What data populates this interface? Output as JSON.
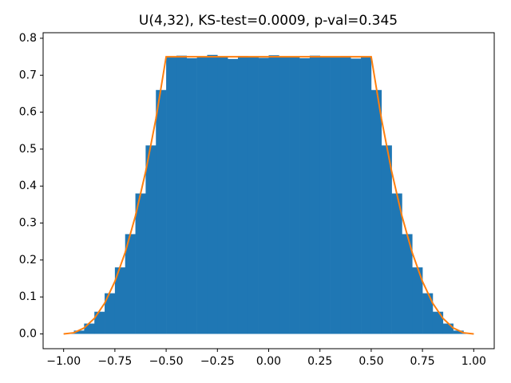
{
  "chart_data": {
    "type": "histogram",
    "title": "U(4,32), KS-test=0.0009, p-val=0.345",
    "bins": [
      -1.0,
      -0.95,
      -0.9,
      -0.85,
      -0.8,
      -0.75,
      -0.7,
      -0.65,
      -0.6,
      -0.55,
      -0.5,
      -0.45,
      -0.4,
      -0.35,
      -0.3,
      -0.25,
      -0.2,
      -0.15,
      -0.1,
      -0.05,
      0.0,
      0.05,
      0.1,
      0.15,
      0.2,
      0.25,
      0.3,
      0.35,
      0.4,
      0.45,
      0.5,
      0.55,
      0.6,
      0.65,
      0.7,
      0.75,
      0.8,
      0.85,
      0.9,
      0.95,
      1.0
    ],
    "values": [
      0.001,
      0.009,
      0.028,
      0.06,
      0.11,
      0.18,
      0.27,
      0.38,
      0.51,
      0.66,
      0.748,
      0.753,
      0.746,
      0.751,
      0.755,
      0.749,
      0.744,
      0.752,
      0.75,
      0.747,
      0.754,
      0.749,
      0.751,
      0.746,
      0.753,
      0.75,
      0.748,
      0.752,
      0.745,
      0.751,
      0.66,
      0.51,
      0.38,
      0.27,
      0.18,
      0.11,
      0.06,
      0.028,
      0.009,
      0.001
    ],
    "color": "#1f77b4",
    "line": {
      "color": "#ff7f0e",
      "x": [
        -1.0,
        -0.95,
        -0.9,
        -0.85,
        -0.8,
        -0.75,
        -0.7,
        -0.65,
        -0.6,
        -0.55,
        -0.5,
        -0.45,
        -0.4,
        -0.35,
        -0.3,
        -0.25,
        -0.2,
        -0.15,
        -0.1,
        -0.05,
        0.0,
        0.05,
        0.1,
        0.15,
        0.2,
        0.25,
        0.3,
        0.35,
        0.4,
        0.45,
        0.5,
        0.55,
        0.6,
        0.65,
        0.7,
        0.75,
        0.8,
        0.85,
        0.9,
        0.95,
        1.0
      ],
      "values": [
        0,
        0.003,
        0.016,
        0.042,
        0.083,
        0.142,
        0.22,
        0.319,
        0.439,
        0.582,
        0.75,
        0.75,
        0.75,
        0.75,
        0.75,
        0.75,
        0.75,
        0.75,
        0.75,
        0.75,
        0.75,
        0.75,
        0.75,
        0.75,
        0.75,
        0.75,
        0.75,
        0.75,
        0.75,
        0.75,
        0.75,
        0.582,
        0.439,
        0.319,
        0.22,
        0.142,
        0.083,
        0.042,
        0.016,
        0.003,
        0
      ]
    },
    "xlim": [
      -1.1,
      1.1
    ],
    "ylim": [
      -0.04,
      0.815
    ],
    "xticks": [
      {
        "value": -1,
        "label": "−1.00"
      },
      {
        "value": -0.75,
        "label": "−0.75"
      },
      {
        "value": -0.5,
        "label": "−0.50"
      },
      {
        "value": -0.25,
        "label": "−0.25"
      },
      {
        "value": 0,
        "label": "0.00"
      },
      {
        "value": 0.25,
        "label": "0.25"
      },
      {
        "value": 0.5,
        "label": "0.50"
      },
      {
        "value": 0.75,
        "label": "0.75"
      },
      {
        "value": 1,
        "label": "1.00"
      }
    ],
    "yticks": [
      {
        "value": 0,
        "label": "0.0"
      },
      0.1,
      0.2,
      0.3,
      0.4,
      0.5,
      0.6,
      0.7,
      0.8
    ]
  }
}
